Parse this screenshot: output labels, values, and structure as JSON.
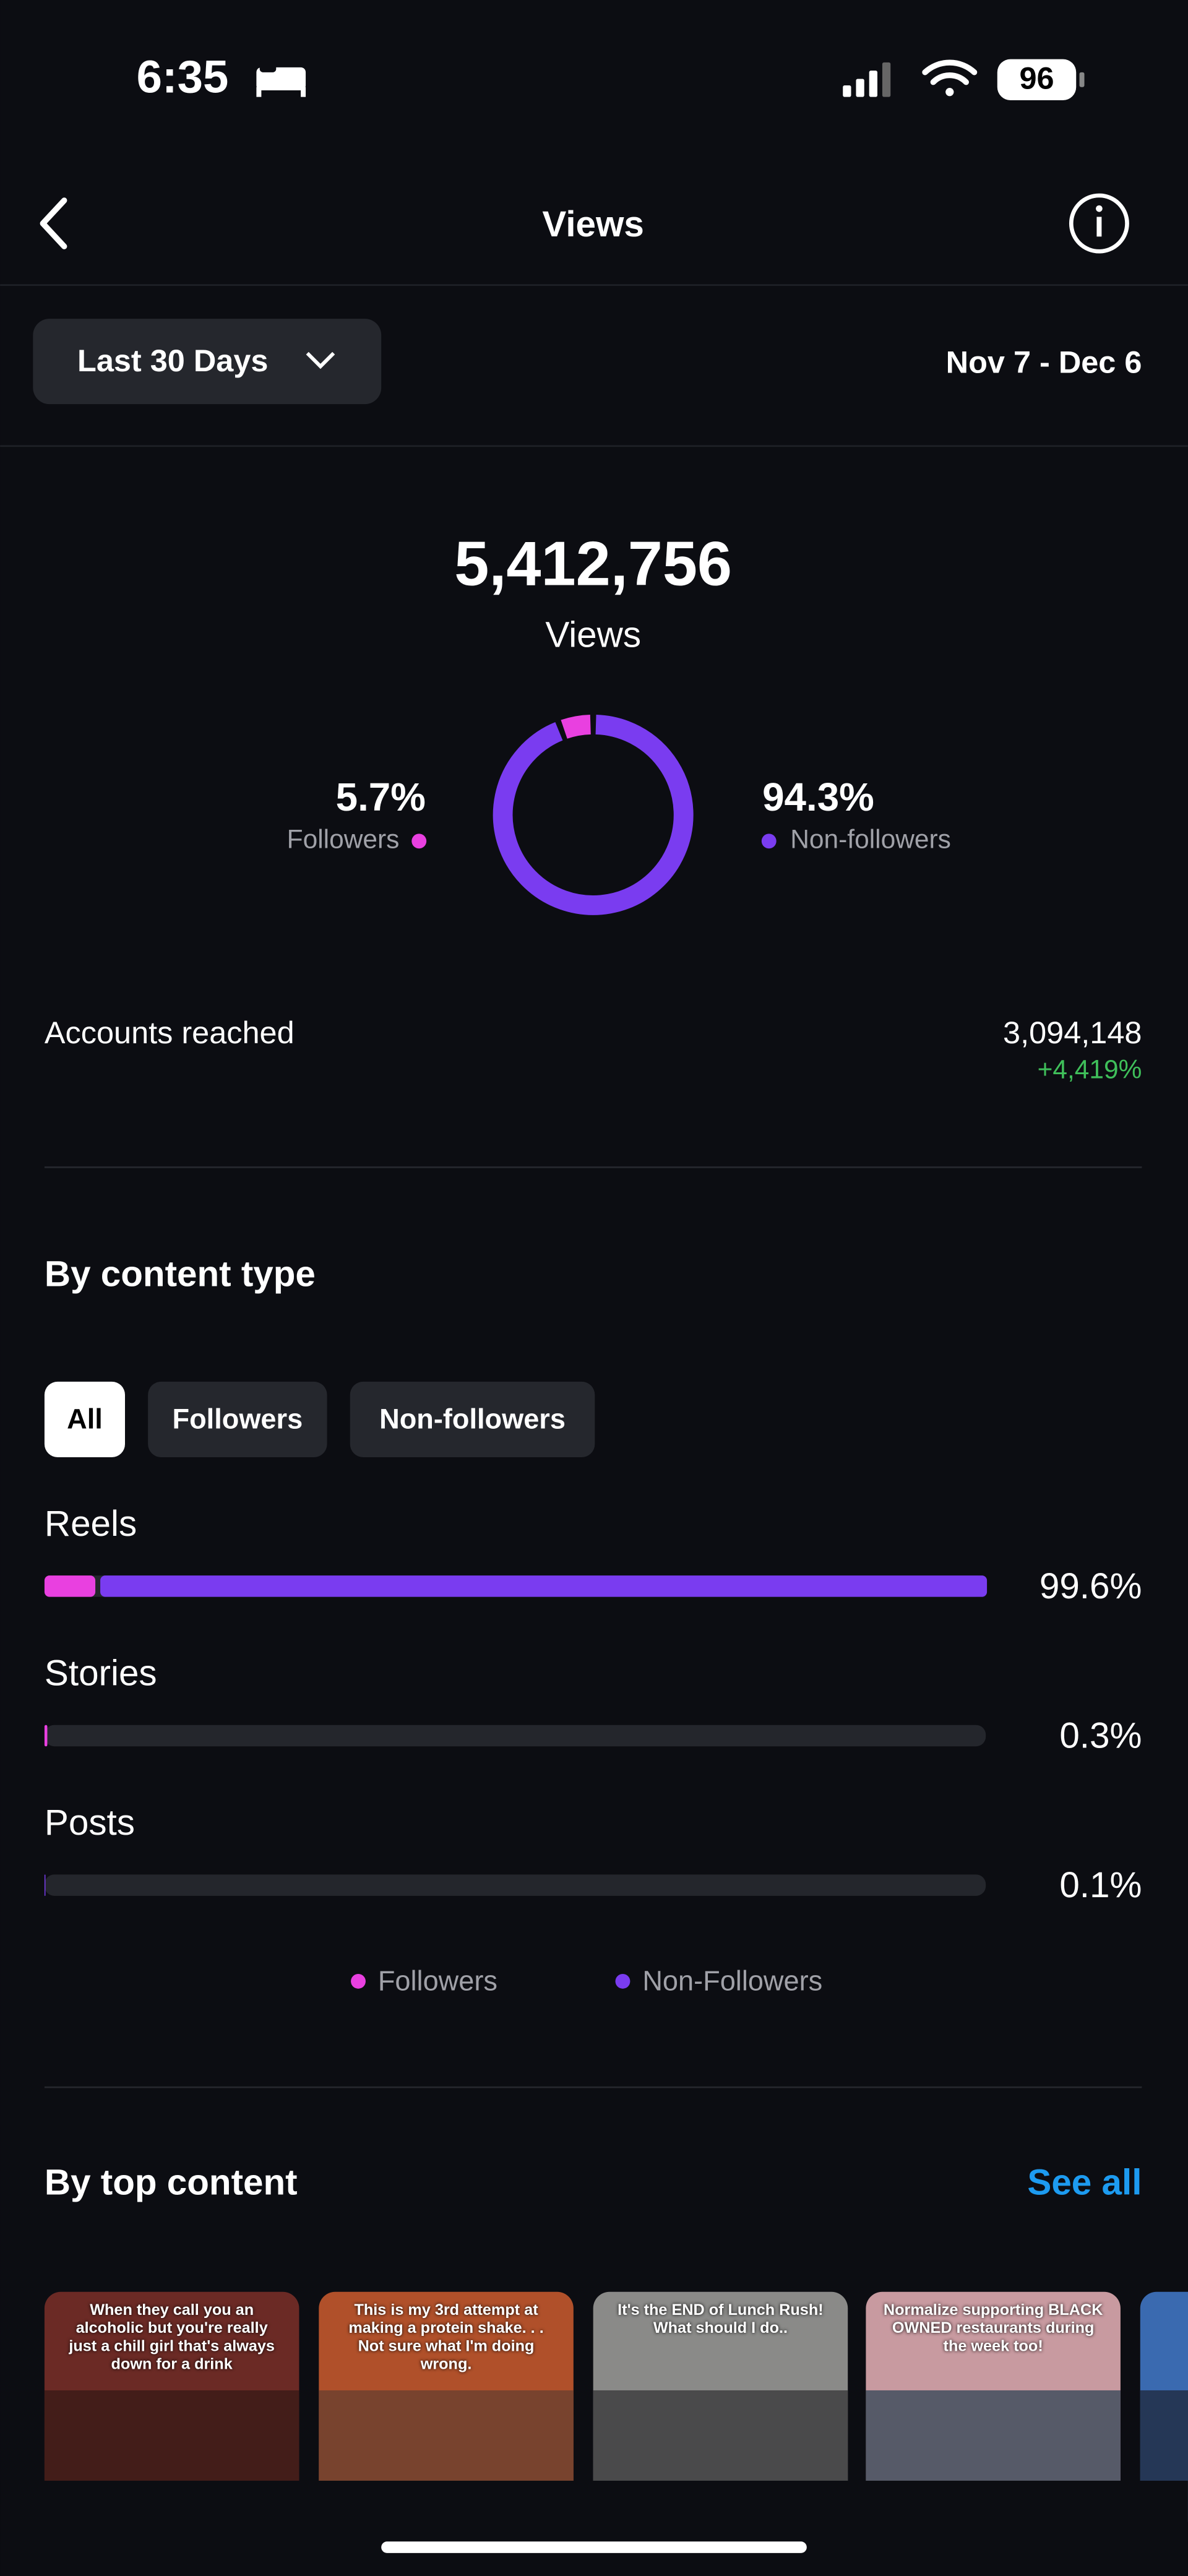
{
  "status_bar": {
    "time": "6:35",
    "battery": "96"
  },
  "header": {
    "title": "Views"
  },
  "filter_bar": {
    "range": "Last 30 Days",
    "dates": "Nov 7 - Dec 6"
  },
  "summary": {
    "total": "5,412,756",
    "total_label": "Views"
  },
  "donut": {
    "followers": {
      "value": 5.7,
      "label": "5.7%",
      "name": "Followers",
      "color": "#e940e0"
    },
    "non_followers": {
      "value": 94.3,
      "label": "94.3%",
      "name": "Non-followers",
      "color": "#7a3cf0"
    }
  },
  "accounts_reached": {
    "label": "Accounts reached",
    "value": "3,094,148",
    "change": "+4,419%"
  },
  "content_type": {
    "title": "By content type",
    "tabs": [
      "All",
      "Followers",
      "Non-followers"
    ],
    "rows": [
      {
        "name": "Reels",
        "total": {
          "value": 99.6,
          "label": "99.6%"
        },
        "followers": 5.4,
        "non_followers": 94.2
      },
      {
        "name": "Stories",
        "total": {
          "value": 0.3,
          "label": "0.3%"
        },
        "followers": 0.3,
        "non_followers": 0
      },
      {
        "name": "Posts",
        "total": {
          "value": 0.1,
          "label": "0.1%"
        },
        "followers": 0,
        "non_followers": 0.1
      }
    ],
    "legend": [
      "Followers",
      "Non-Followers"
    ]
  },
  "top_content": {
    "title": "By top content",
    "see_all": "See all",
    "items": [
      "When they call you an alcoholic but you're really just a chill girl that's always down for a drink",
      "This is my 3rd attempt at making a protein shake. . . Not sure what I'm doing wrong.",
      "It's the END of Lunch Rush! What should I do..",
      "Normalize supporting BLACK OWNED restaurants during the week too!"
    ]
  }
}
